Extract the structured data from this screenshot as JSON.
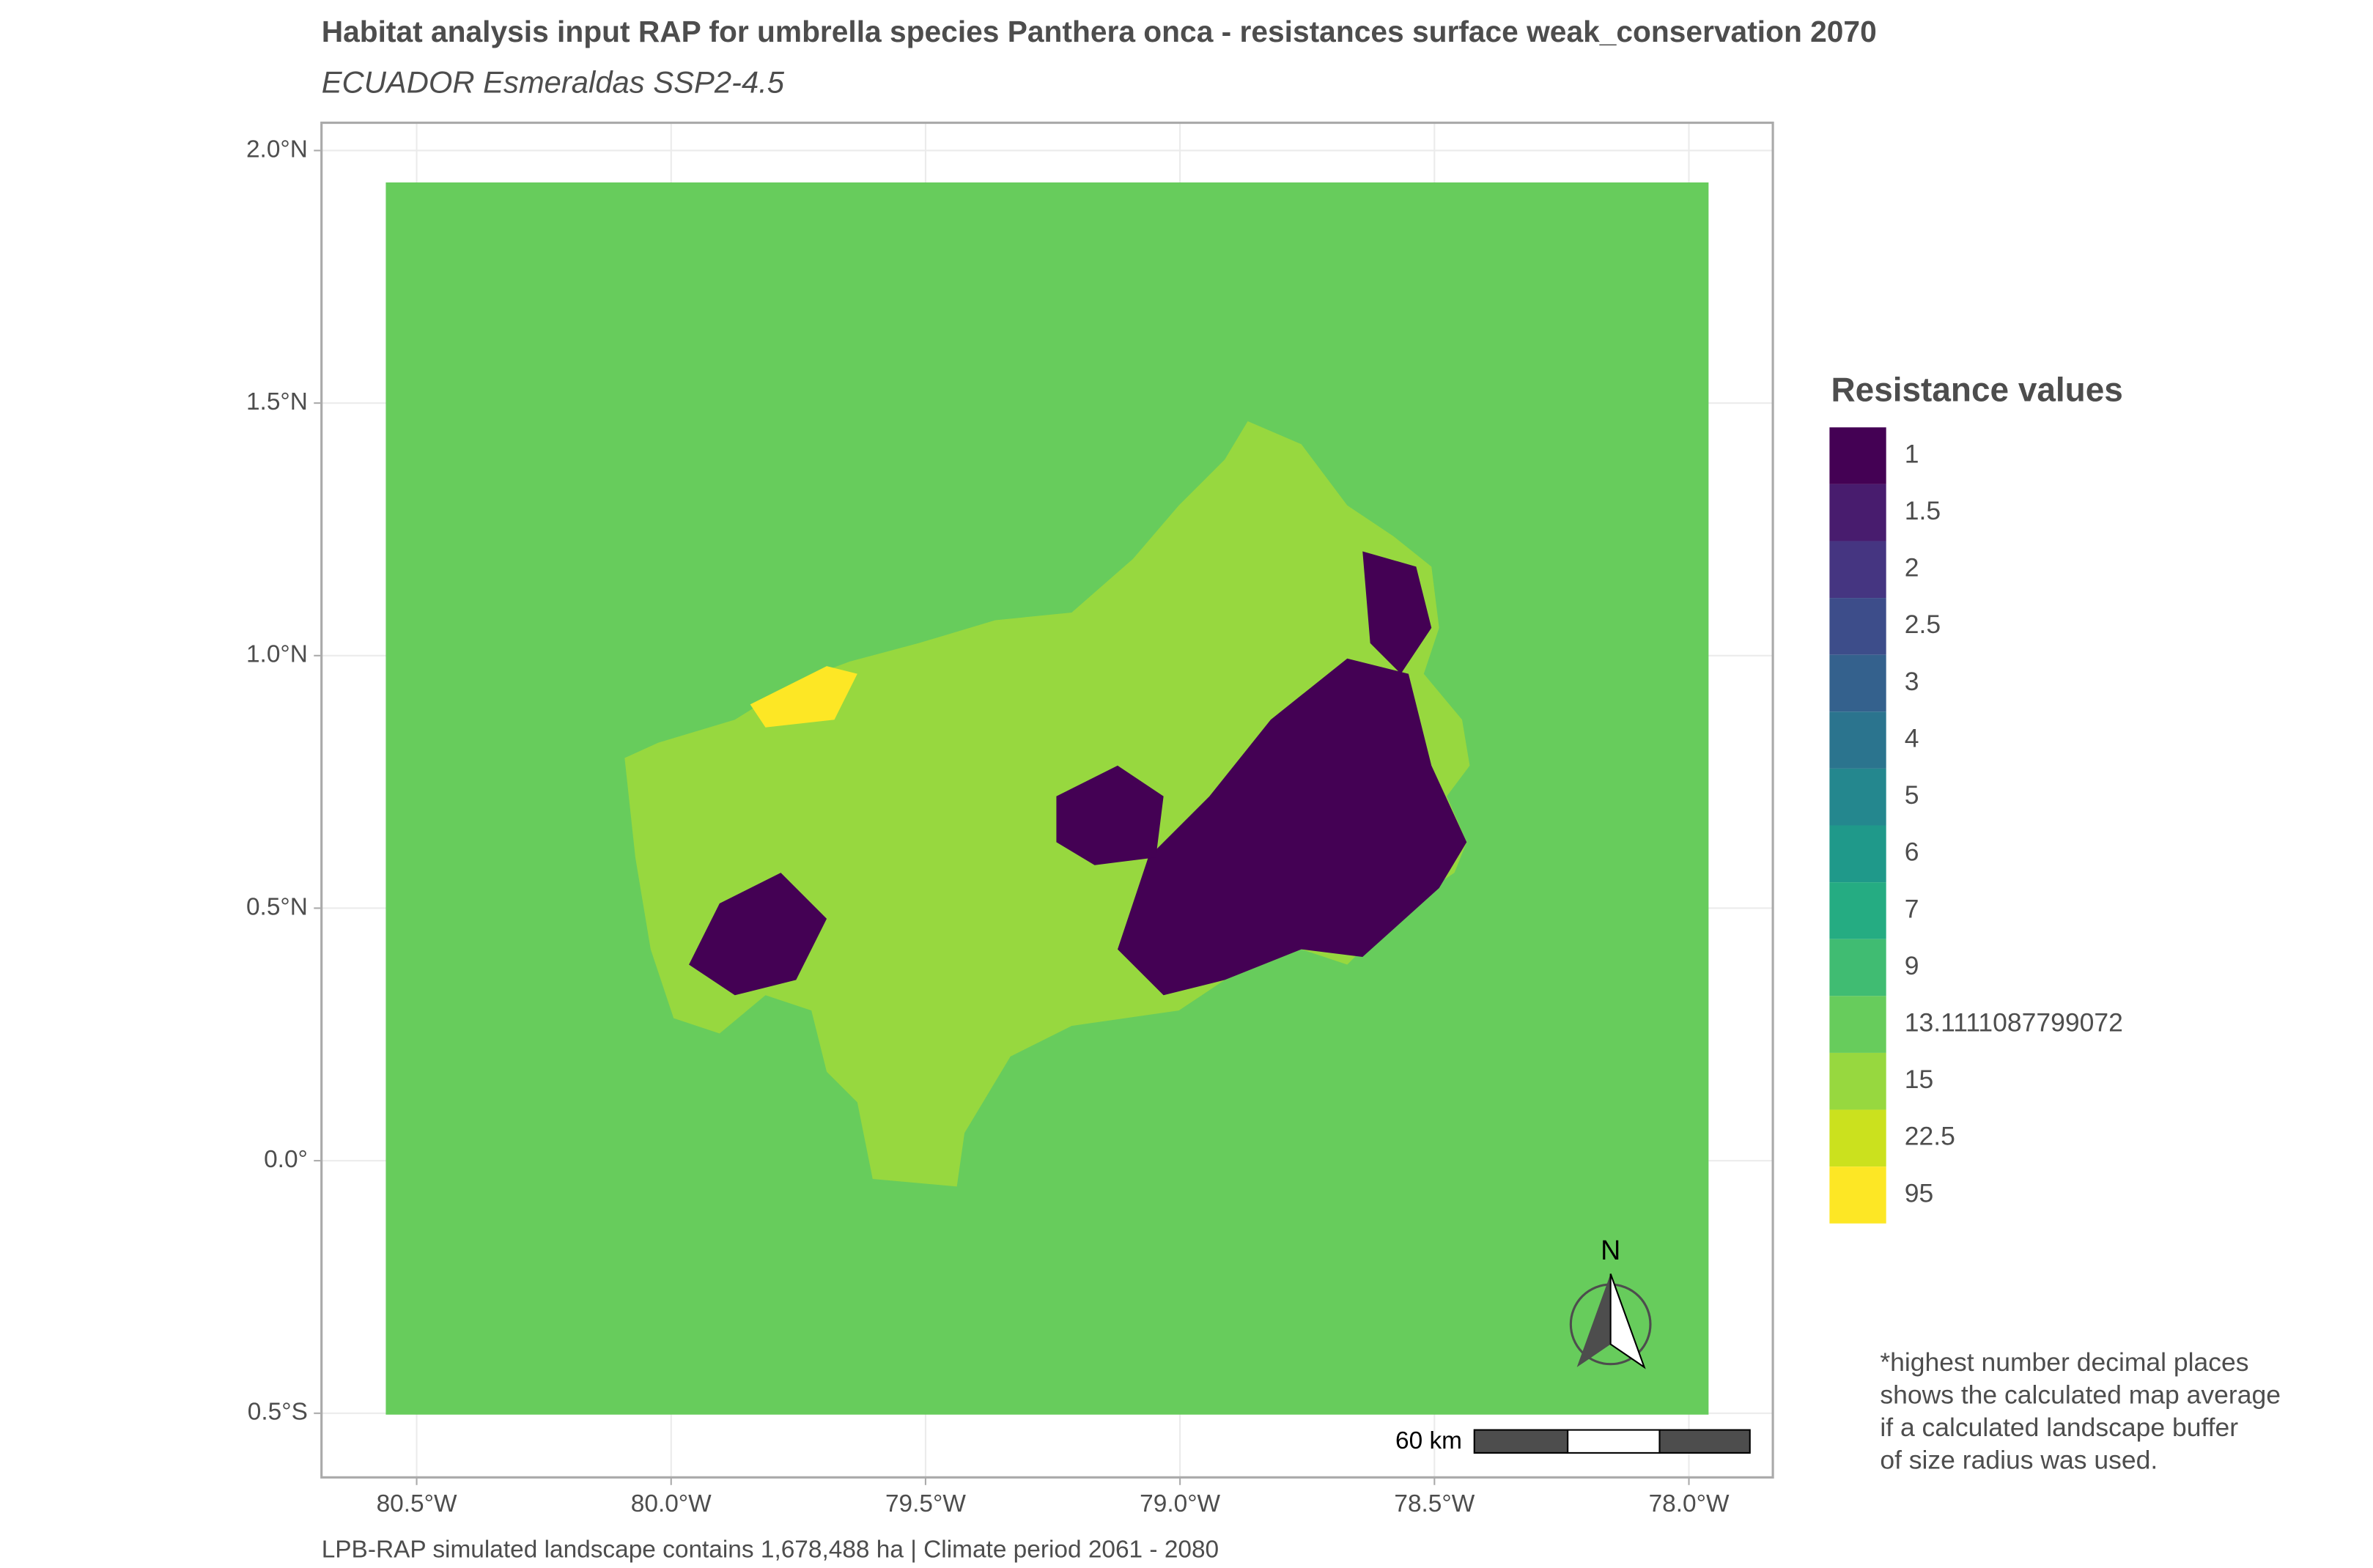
{
  "chart_data": {
    "type": "raster",
    "title": "Habitat analysis input RAP for umbrella species Panthera onca - resistances surface weak_conservation 2070",
    "subtitle": "ECUADOR Esmeraldas SSP2-4.5",
    "caption": "LPB-RAP simulated landscape contains 1,678,488 ha | Climate period 2061 - 2080",
    "xlim": [
      -80.687,
      -77.835
    ],
    "ylim": [
      -0.627,
      2.055
    ],
    "xticks": [
      {
        "value": -80.5,
        "label": "80.5°W"
      },
      {
        "value": -80.0,
        "label": "80.0°W"
      },
      {
        "value": -79.5,
        "label": "79.5°W"
      },
      {
        "value": -79.0,
        "label": "79.0°W"
      },
      {
        "value": -78.5,
        "label": "78.5°W"
      },
      {
        "value": -78.0,
        "label": "78.0°W"
      }
    ],
    "yticks": [
      {
        "value": -0.5,
        "label": "0.5°S"
      },
      {
        "value": 0,
        "label": "0.0°"
      },
      {
        "value": 0.5,
        "label": "0.5°N"
      },
      {
        "value": 1.0,
        "label": "1.0°N"
      },
      {
        "value": 1.5,
        "label": "1.5°N"
      },
      {
        "value": 2.0,
        "label": "2.0°N"
      }
    ],
    "grid": true,
    "legend": {
      "title": "Resistance values",
      "values": [
        1,
        1.5,
        2,
        2.5,
        3,
        4,
        5,
        6,
        7,
        9,
        13.1111087799072,
        15,
        22.5,
        95
      ],
      "colors": [
        "#440154",
        "#481c6e",
        "#453581",
        "#3d4d8a",
        "#34618d",
        "#2b748e",
        "#24878e",
        "#1f998a",
        "#25ac82",
        "#40bc72",
        "#67cc5c",
        "#97d83f",
        "#cbe11e",
        "#fde725"
      ]
    },
    "scale_bar": "60 km",
    "north": "N",
    "note": [
      "*highest number decimal places",
      "shows the calculated map average",
      "if a calculated landscape buffer",
      "of size radius was used."
    ]
  }
}
